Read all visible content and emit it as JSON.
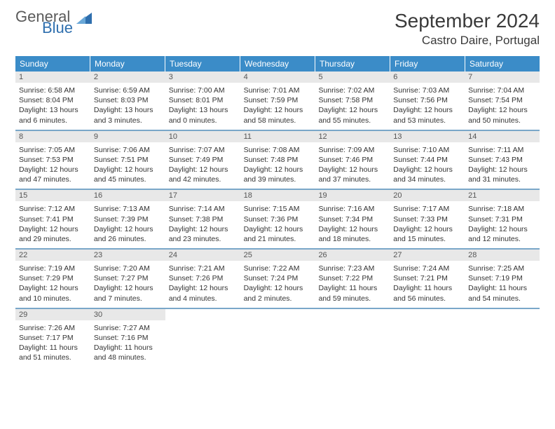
{
  "logo": {
    "general": "General",
    "blue": "Blue"
  },
  "title": "September 2024",
  "location": "Castro Daire, Portugal",
  "headers": [
    "Sunday",
    "Monday",
    "Tuesday",
    "Wednesday",
    "Thursday",
    "Friday",
    "Saturday"
  ],
  "colors": {
    "header_bg": "#3b8cc8",
    "header_text": "#ffffff",
    "daynum_bg": "#e8e8e8",
    "border": "#7aa7c9",
    "logo_gray": "#5a5a5a",
    "logo_blue": "#2f6fae"
  },
  "weeks": [
    [
      {
        "n": "1",
        "sr": "Sunrise: 6:58 AM",
        "ss": "Sunset: 8:04 PM",
        "dl": "Daylight: 13 hours and 6 minutes."
      },
      {
        "n": "2",
        "sr": "Sunrise: 6:59 AM",
        "ss": "Sunset: 8:03 PM",
        "dl": "Daylight: 13 hours and 3 minutes."
      },
      {
        "n": "3",
        "sr": "Sunrise: 7:00 AM",
        "ss": "Sunset: 8:01 PM",
        "dl": "Daylight: 13 hours and 0 minutes."
      },
      {
        "n": "4",
        "sr": "Sunrise: 7:01 AM",
        "ss": "Sunset: 7:59 PM",
        "dl": "Daylight: 12 hours and 58 minutes."
      },
      {
        "n": "5",
        "sr": "Sunrise: 7:02 AM",
        "ss": "Sunset: 7:58 PM",
        "dl": "Daylight: 12 hours and 55 minutes."
      },
      {
        "n": "6",
        "sr": "Sunrise: 7:03 AM",
        "ss": "Sunset: 7:56 PM",
        "dl": "Daylight: 12 hours and 53 minutes."
      },
      {
        "n": "7",
        "sr": "Sunrise: 7:04 AM",
        "ss": "Sunset: 7:54 PM",
        "dl": "Daylight: 12 hours and 50 minutes."
      }
    ],
    [
      {
        "n": "8",
        "sr": "Sunrise: 7:05 AM",
        "ss": "Sunset: 7:53 PM",
        "dl": "Daylight: 12 hours and 47 minutes."
      },
      {
        "n": "9",
        "sr": "Sunrise: 7:06 AM",
        "ss": "Sunset: 7:51 PM",
        "dl": "Daylight: 12 hours and 45 minutes."
      },
      {
        "n": "10",
        "sr": "Sunrise: 7:07 AM",
        "ss": "Sunset: 7:49 PM",
        "dl": "Daylight: 12 hours and 42 minutes."
      },
      {
        "n": "11",
        "sr": "Sunrise: 7:08 AM",
        "ss": "Sunset: 7:48 PM",
        "dl": "Daylight: 12 hours and 39 minutes."
      },
      {
        "n": "12",
        "sr": "Sunrise: 7:09 AM",
        "ss": "Sunset: 7:46 PM",
        "dl": "Daylight: 12 hours and 37 minutes."
      },
      {
        "n": "13",
        "sr": "Sunrise: 7:10 AM",
        "ss": "Sunset: 7:44 PM",
        "dl": "Daylight: 12 hours and 34 minutes."
      },
      {
        "n": "14",
        "sr": "Sunrise: 7:11 AM",
        "ss": "Sunset: 7:43 PM",
        "dl": "Daylight: 12 hours and 31 minutes."
      }
    ],
    [
      {
        "n": "15",
        "sr": "Sunrise: 7:12 AM",
        "ss": "Sunset: 7:41 PM",
        "dl": "Daylight: 12 hours and 29 minutes."
      },
      {
        "n": "16",
        "sr": "Sunrise: 7:13 AM",
        "ss": "Sunset: 7:39 PM",
        "dl": "Daylight: 12 hours and 26 minutes."
      },
      {
        "n": "17",
        "sr": "Sunrise: 7:14 AM",
        "ss": "Sunset: 7:38 PM",
        "dl": "Daylight: 12 hours and 23 minutes."
      },
      {
        "n": "18",
        "sr": "Sunrise: 7:15 AM",
        "ss": "Sunset: 7:36 PM",
        "dl": "Daylight: 12 hours and 21 minutes."
      },
      {
        "n": "19",
        "sr": "Sunrise: 7:16 AM",
        "ss": "Sunset: 7:34 PM",
        "dl": "Daylight: 12 hours and 18 minutes."
      },
      {
        "n": "20",
        "sr": "Sunrise: 7:17 AM",
        "ss": "Sunset: 7:33 PM",
        "dl": "Daylight: 12 hours and 15 minutes."
      },
      {
        "n": "21",
        "sr": "Sunrise: 7:18 AM",
        "ss": "Sunset: 7:31 PM",
        "dl": "Daylight: 12 hours and 12 minutes."
      }
    ],
    [
      {
        "n": "22",
        "sr": "Sunrise: 7:19 AM",
        "ss": "Sunset: 7:29 PM",
        "dl": "Daylight: 12 hours and 10 minutes."
      },
      {
        "n": "23",
        "sr": "Sunrise: 7:20 AM",
        "ss": "Sunset: 7:27 PM",
        "dl": "Daylight: 12 hours and 7 minutes."
      },
      {
        "n": "24",
        "sr": "Sunrise: 7:21 AM",
        "ss": "Sunset: 7:26 PM",
        "dl": "Daylight: 12 hours and 4 minutes."
      },
      {
        "n": "25",
        "sr": "Sunrise: 7:22 AM",
        "ss": "Sunset: 7:24 PM",
        "dl": "Daylight: 12 hours and 2 minutes."
      },
      {
        "n": "26",
        "sr": "Sunrise: 7:23 AM",
        "ss": "Sunset: 7:22 PM",
        "dl": "Daylight: 11 hours and 59 minutes."
      },
      {
        "n": "27",
        "sr": "Sunrise: 7:24 AM",
        "ss": "Sunset: 7:21 PM",
        "dl": "Daylight: 11 hours and 56 minutes."
      },
      {
        "n": "28",
        "sr": "Sunrise: 7:25 AM",
        "ss": "Sunset: 7:19 PM",
        "dl": "Daylight: 11 hours and 54 minutes."
      }
    ],
    [
      {
        "n": "29",
        "sr": "Sunrise: 7:26 AM",
        "ss": "Sunset: 7:17 PM",
        "dl": "Daylight: 11 hours and 51 minutes."
      },
      {
        "n": "30",
        "sr": "Sunrise: 7:27 AM",
        "ss": "Sunset: 7:16 PM",
        "dl": "Daylight: 11 hours and 48 minutes."
      },
      null,
      null,
      null,
      null,
      null
    ]
  ]
}
